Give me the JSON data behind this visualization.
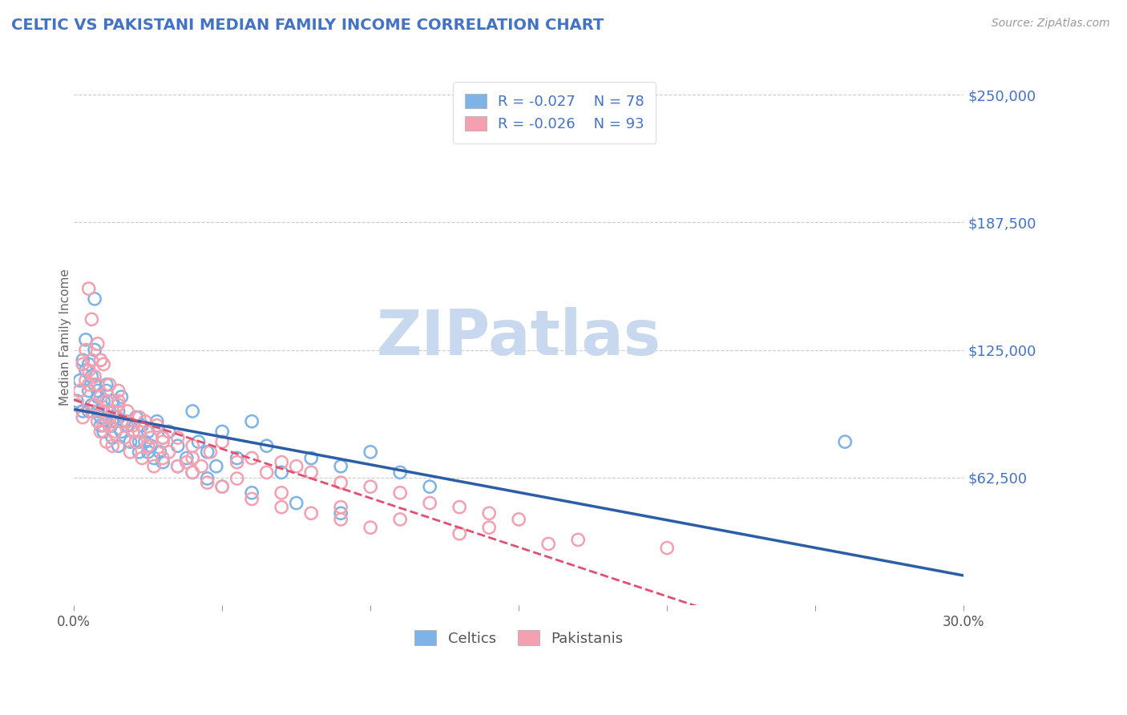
{
  "title": "CELTIC VS PAKISTANI MEDIAN FAMILY INCOME CORRELATION CHART",
  "source_text": "Source: ZipAtlas.com",
  "ylabel": "Median Family Income",
  "xlim": [
    0.0,
    0.3
  ],
  "ylim": [
    0,
    262500
  ],
  "yticks": [
    0,
    62500,
    125000,
    187500,
    250000
  ],
  "ytick_labels": [
    "",
    "$62,500",
    "$125,000",
    "$187,500",
    "$250,000"
  ],
  "xticks": [
    0.0,
    0.05,
    0.1,
    0.15,
    0.2,
    0.25,
    0.3
  ],
  "celtics_R": -0.027,
  "celtics_N": 78,
  "pakistanis_R": -0.026,
  "pakistanis_N": 93,
  "celtics_color": "#7EB3E8",
  "pakistanis_color": "#F4A0B0",
  "celtics_line_color": "#2B5EA7",
  "pakistanis_line_color": "#E05070",
  "grid_color": "#CCCCCC",
  "axis_label_color": "#4472C4",
  "title_color": "#4472C4",
  "background_color": "#FFFFFF",
  "watermark_text": "ZIPatlas",
  "watermark_color": "#C8D8EE",
  "legend_label_celtics": "Celtics",
  "legend_label_pakistanis": "Pakistanis",
  "celtics_x": [
    0.001,
    0.002,
    0.003,
    0.003,
    0.004,
    0.004,
    0.005,
    0.005,
    0.006,
    0.006,
    0.007,
    0.007,
    0.008,
    0.008,
    0.009,
    0.009,
    0.01,
    0.01,
    0.011,
    0.011,
    0.012,
    0.012,
    0.013,
    0.013,
    0.014,
    0.015,
    0.015,
    0.016,
    0.016,
    0.017,
    0.018,
    0.019,
    0.02,
    0.021,
    0.022,
    0.023,
    0.024,
    0.025,
    0.026,
    0.027,
    0.028,
    0.029,
    0.03,
    0.032,
    0.035,
    0.038,
    0.04,
    0.042,
    0.045,
    0.048,
    0.05,
    0.055,
    0.06,
    0.065,
    0.07,
    0.08,
    0.09,
    0.1,
    0.11,
    0.12,
    0.007,
    0.009,
    0.011,
    0.013,
    0.018,
    0.022,
    0.025,
    0.03,
    0.035,
    0.04,
    0.045,
    0.05,
    0.06,
    0.075,
    0.09,
    0.26,
    0.005,
    0.008
  ],
  "celtics_y": [
    100000,
    110000,
    120000,
    95000,
    130000,
    115000,
    105000,
    118000,
    112000,
    98000,
    108000,
    125000,
    95000,
    102000,
    92000,
    88000,
    100000,
    85000,
    105000,
    90000,
    95000,
    88000,
    100000,
    82000,
    92000,
    95000,
    78000,
    102000,
    85000,
    90000,
    88000,
    80000,
    85000,
    92000,
    75000,
    88000,
    80000,
    85000,
    78000,
    72000,
    90000,
    75000,
    82000,
    85000,
    78000,
    72000,
    95000,
    80000,
    75000,
    68000,
    85000,
    72000,
    90000,
    78000,
    65000,
    72000,
    68000,
    75000,
    65000,
    58000,
    150000,
    120000,
    108000,
    90000,
    88000,
    80000,
    75000,
    70000,
    68000,
    65000,
    62000,
    58000,
    55000,
    50000,
    45000,
    80000,
    95000,
    105000
  ],
  "pakistanis_x": [
    0.001,
    0.002,
    0.003,
    0.003,
    0.004,
    0.004,
    0.005,
    0.005,
    0.006,
    0.006,
    0.007,
    0.007,
    0.008,
    0.008,
    0.009,
    0.009,
    0.01,
    0.01,
    0.011,
    0.011,
    0.012,
    0.012,
    0.013,
    0.013,
    0.014,
    0.015,
    0.016,
    0.017,
    0.018,
    0.019,
    0.02,
    0.021,
    0.022,
    0.023,
    0.024,
    0.025,
    0.026,
    0.027,
    0.028,
    0.03,
    0.032,
    0.035,
    0.038,
    0.04,
    0.043,
    0.046,
    0.05,
    0.055,
    0.06,
    0.065,
    0.07,
    0.075,
    0.08,
    0.09,
    0.1,
    0.11,
    0.12,
    0.13,
    0.14,
    0.15,
    0.006,
    0.008,
    0.01,
    0.012,
    0.015,
    0.018,
    0.02,
    0.025,
    0.03,
    0.035,
    0.04,
    0.045,
    0.05,
    0.06,
    0.07,
    0.08,
    0.09,
    0.1,
    0.13,
    0.16,
    0.005,
    0.009,
    0.015,
    0.022,
    0.03,
    0.04,
    0.055,
    0.07,
    0.09,
    0.11,
    0.14,
    0.17,
    0.2
  ],
  "pakistanis_y": [
    98000,
    105000,
    118000,
    92000,
    125000,
    110000,
    108000,
    115000,
    120000,
    95000,
    112000,
    98000,
    108000,
    90000,
    102000,
    85000,
    95000,
    88000,
    100000,
    80000,
    92000,
    88000,
    95000,
    78000,
    85000,
    100000,
    90000,
    82000,
    95000,
    75000,
    88000,
    80000,
    85000,
    72000,
    90000,
    78000,
    82000,
    68000,
    88000,
    80000,
    75000,
    82000,
    70000,
    78000,
    68000,
    75000,
    80000,
    70000,
    72000,
    65000,
    70000,
    68000,
    65000,
    60000,
    58000,
    55000,
    50000,
    48000,
    45000,
    42000,
    140000,
    128000,
    118000,
    108000,
    98000,
    90000,
    85000,
    78000,
    72000,
    68000,
    65000,
    60000,
    58000,
    52000,
    48000,
    45000,
    42000,
    38000,
    35000,
    30000,
    155000,
    120000,
    105000,
    92000,
    82000,
    72000,
    62000,
    55000,
    48000,
    42000,
    38000,
    32000,
    28000
  ]
}
